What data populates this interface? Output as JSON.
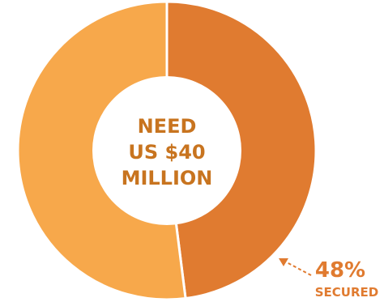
{
  "chart_data": {
    "type": "pie",
    "center_label": [
      "NEED",
      "US $40",
      "MILLION"
    ],
    "slices": [
      {
        "label": "SECURED",
        "value": 48,
        "color": "#e07b30"
      },
      {
        "label": "",
        "value": 52,
        "color": "#f7a84b"
      }
    ],
    "annotation": {
      "value_text": "48%",
      "label_text": "SECURED",
      "color": "#e07b30"
    }
  }
}
